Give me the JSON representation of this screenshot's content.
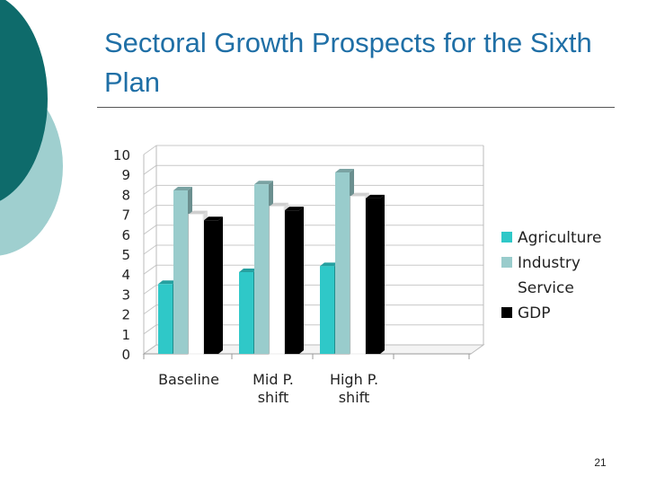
{
  "slide": {
    "title": "Sectoral Growth Prospects for the Sixth Plan",
    "page_number": "21"
  },
  "colors": {
    "title": "#1f6fa6",
    "decor_dark": "#0e6b6b",
    "decor_light": "#9fcfcf"
  },
  "chart_data": {
    "type": "bar",
    "style": "3d-clustered-column",
    "categories": [
      [
        "Baseline"
      ],
      [
        "Mid P.",
        "shift"
      ],
      [
        "High P.",
        "shift"
      ]
    ],
    "ylim": [
      0,
      10
    ],
    "yticks": [
      0,
      1,
      2,
      3,
      4,
      5,
      6,
      7,
      8,
      9,
      10
    ],
    "grid": true,
    "legend_position": "right",
    "series": [
      {
        "name": "Agriculture",
        "color": "#2fc8c8",
        "values": [
          3.5,
          4.1,
          4.4
        ]
      },
      {
        "name": "Industry",
        "color": "#99cccc",
        "values": [
          8.2,
          8.5,
          9.1
        ]
      },
      {
        "name": "Service",
        "color": "#ffffff",
        "values": [
          7.0,
          7.4,
          7.9
        ]
      },
      {
        "name": "GDP",
        "color": "#000000",
        "values": [
          6.7,
          7.2,
          7.8
        ]
      }
    ]
  }
}
